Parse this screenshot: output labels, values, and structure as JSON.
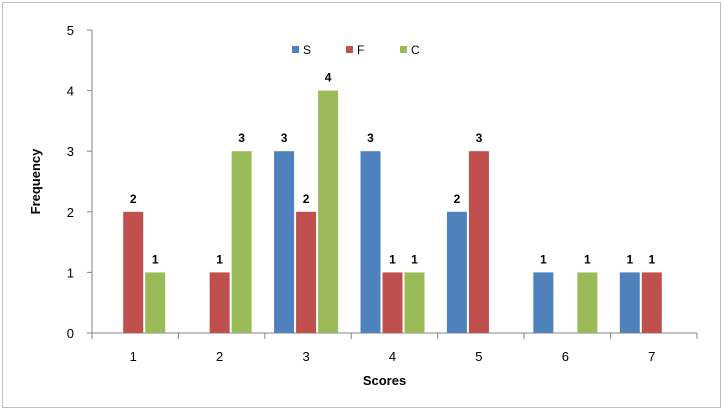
{
  "chart_data": {
    "type": "bar",
    "categories": [
      "1",
      "2",
      "3",
      "4",
      "5",
      "6",
      "7"
    ],
    "series": [
      {
        "name": "S",
        "color": "#4f81bd",
        "values": [
          0,
          0,
          3,
          3,
          2,
          1,
          1
        ]
      },
      {
        "name": "F",
        "color": "#c0504d",
        "values": [
          2,
          1,
          2,
          1,
          3,
          0,
          1
        ]
      },
      {
        "name": "C",
        "color": "#9bbb59",
        "values": [
          1,
          3,
          4,
          1,
          0,
          1,
          0
        ]
      }
    ],
    "title": "",
    "xlabel": "Scores",
    "ylabel": "Frequency",
    "ylim": [
      0,
      5
    ],
    "yticks": [
      0,
      1,
      2,
      3,
      4,
      5
    ],
    "grid": false,
    "legend_position": "top-center",
    "data_labels": true
  }
}
